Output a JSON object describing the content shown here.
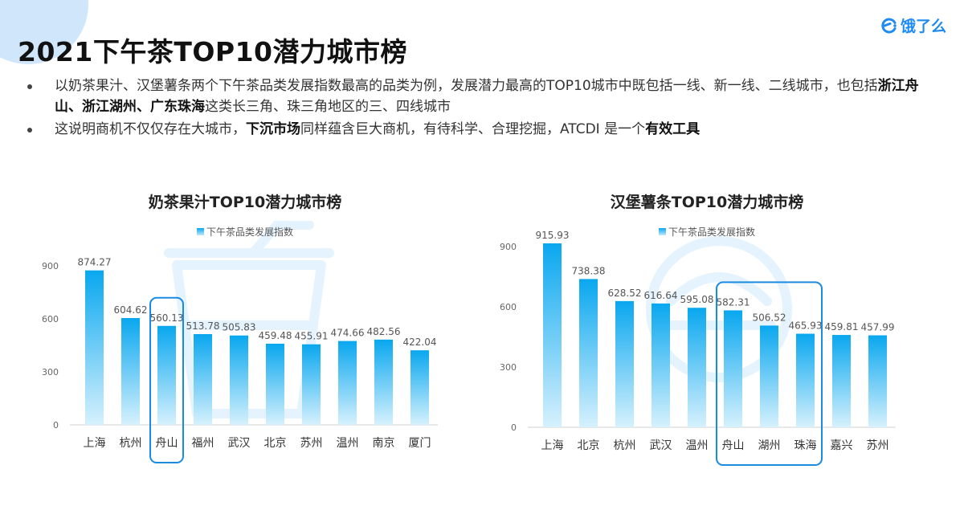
{
  "page": {
    "title": "2021下午茶TOP10潜力城市榜",
    "logo_text": "饿了么",
    "bullet1": {
      "before": "以奶茶果汁、汉堡薯条两个下午茶品类发展指数最高的品类为例，发展潜力最高的TOP10城市中既包括一线、新一线、二线城市，也包括",
      "highlight1": "浙江舟山",
      "sep1": "、",
      "highlight2": "浙江湖州",
      "sep2": "、",
      "highlight3": "广东珠海",
      "after": "这类长三角、珠三角地区的三、四线城市"
    },
    "bullet2": {
      "before": "这说明商机不仅仅存在大城市，",
      "highlight1": "下沉市场",
      "middle": "同样蕴含巨大商机，有待科学、合理挖掘，ATCDI 是一个",
      "highlight2": "有效工具"
    },
    "colors": {
      "bar_top": "#09a7ef",
      "bar_bottom": "#d6f1fd",
      "highlight_box": "#1a8be0",
      "logo": "#1e8bf3"
    }
  },
  "chart_data": [
    {
      "type": "bar",
      "title": "奶茶果汁TOP10潜力城市榜",
      "legend": "下午茶品类发展指数",
      "legend_position": "top-center",
      "categories": [
        "上海",
        "杭州",
        "舟山",
        "福州",
        "武汉",
        "北京",
        "苏州",
        "温州",
        "南京",
        "厦门"
      ],
      "series": [
        {
          "name": "下午茶品类发展指数",
          "values": [
            874.27,
            604.62,
            560.13,
            513.78,
            505.83,
            459.48,
            455.91,
            474.66,
            482.56,
            422.04
          ]
        }
      ],
      "ylim": [
        0,
        900
      ],
      "yticks": [
        0,
        300,
        600,
        900
      ],
      "highlighted": [
        "舟山"
      ],
      "grid": false
    },
    {
      "type": "bar",
      "title": "汉堡薯条TOP10潜力城市榜",
      "legend": "下午茶品类发展指数",
      "legend_position": "top-center",
      "categories": [
        "上海",
        "北京",
        "杭州",
        "武汉",
        "温州",
        "舟山",
        "湖州",
        "珠海",
        "嘉兴",
        "苏州"
      ],
      "series": [
        {
          "name": "下午茶品类发展指数",
          "values": [
            915.93,
            738.38,
            628.52,
            616.64,
            595.08,
            582.31,
            506.52,
            465.93,
            459.81,
            457.99
          ]
        }
      ],
      "ylim": [
        0,
        900
      ],
      "yticks": [
        0,
        300,
        600,
        900
      ],
      "highlighted": [
        "舟山",
        "湖州",
        "珠海"
      ],
      "grid": false
    }
  ]
}
